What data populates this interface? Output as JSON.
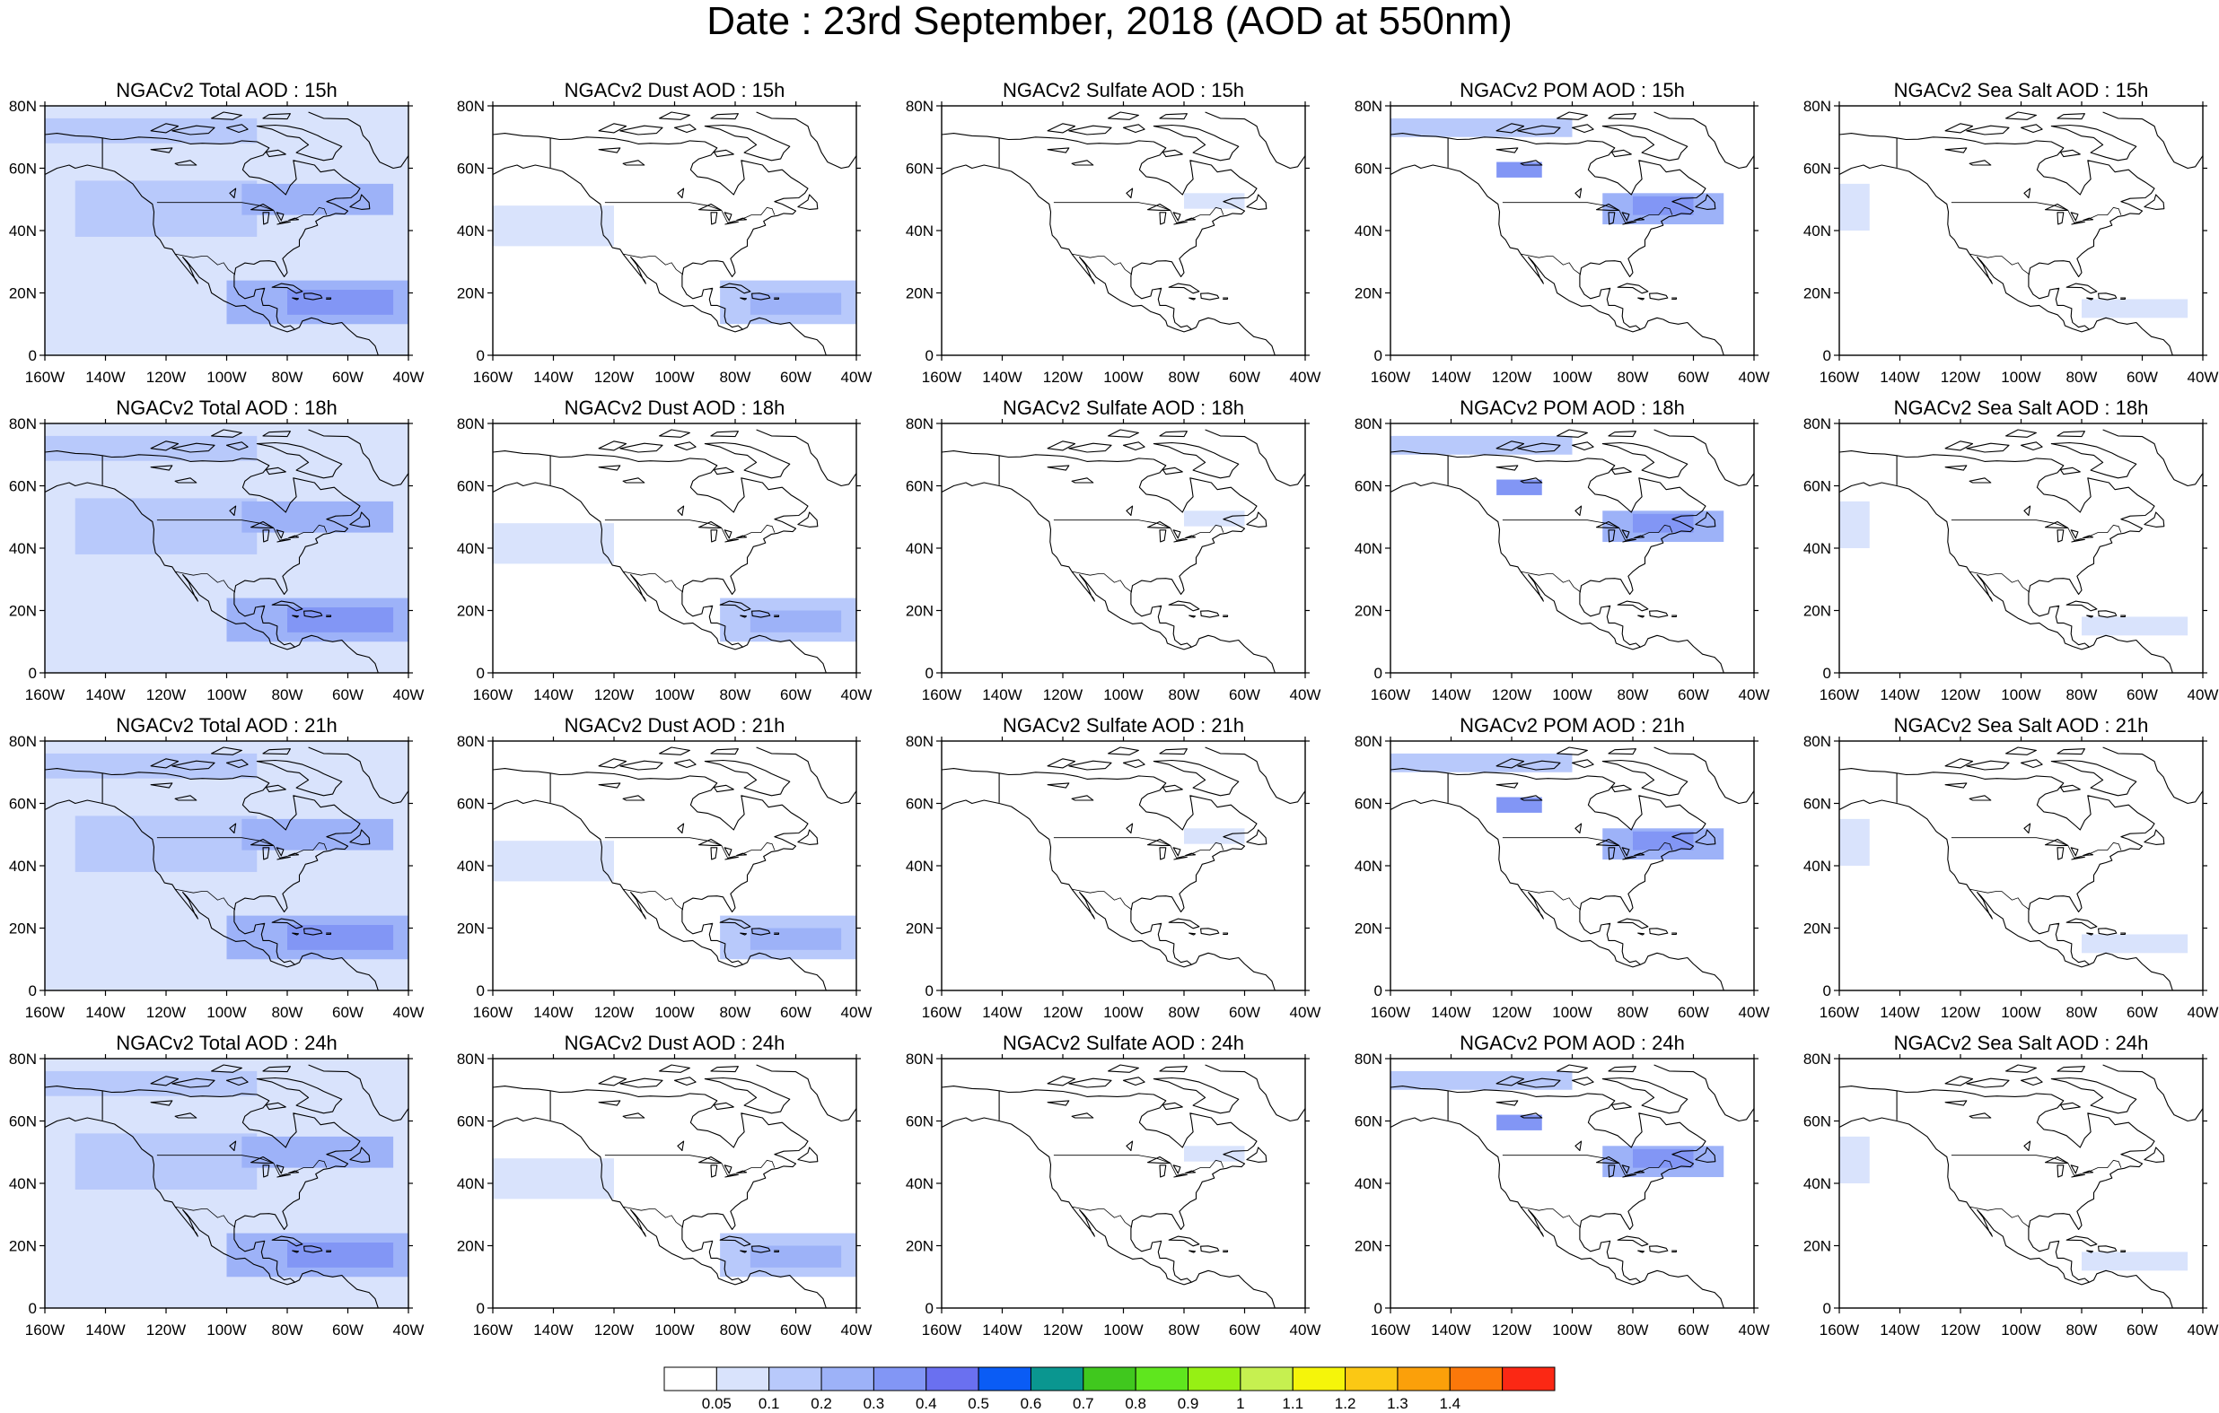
{
  "title": "Date : 23rd September, 2018 (AOD at 550nm)",
  "latitude_labels": [
    "80N",
    "60N",
    "40N",
    "20N",
    "0"
  ],
  "longitude_labels": [
    "160W",
    "140W",
    "120W",
    "100W",
    "80W",
    "60W",
    "40W"
  ],
  "panels": [
    {
      "title": "NGACv2 Total AOD : 15h",
      "species": "total",
      "hour": "15h"
    },
    {
      "title": "NGACv2 Dust AOD : 15h",
      "species": "dust",
      "hour": "15h"
    },
    {
      "title": "NGACv2 Sulfate AOD : 15h",
      "species": "sulfate",
      "hour": "15h"
    },
    {
      "title": "NGACv2 POM AOD : 15h",
      "species": "pom",
      "hour": "15h"
    },
    {
      "title": "NGACv2 Sea Salt AOD : 15h",
      "species": "seasalt",
      "hour": "15h"
    },
    {
      "title": "NGACv2 Total AOD : 18h",
      "species": "total",
      "hour": "18h"
    },
    {
      "title": "NGACv2 Dust AOD : 18h",
      "species": "dust",
      "hour": "18h"
    },
    {
      "title": "NGACv2 Sulfate AOD : 18h",
      "species": "sulfate",
      "hour": "18h"
    },
    {
      "title": "NGACv2 POM AOD : 18h",
      "species": "pom",
      "hour": "18h"
    },
    {
      "title": "NGACv2 Sea Salt AOD : 18h",
      "species": "seasalt",
      "hour": "18h"
    },
    {
      "title": "NGACv2 Total AOD : 21h",
      "species": "total",
      "hour": "21h"
    },
    {
      "title": "NGACv2 Dust AOD : 21h",
      "species": "dust",
      "hour": "21h"
    },
    {
      "title": "NGACv2 Sulfate AOD : 21h",
      "species": "sulfate",
      "hour": "21h"
    },
    {
      "title": "NGACv2 POM AOD : 21h",
      "species": "pom",
      "hour": "21h"
    },
    {
      "title": "NGACv2 Sea Salt AOD : 21h",
      "species": "seasalt",
      "hour": "21h"
    },
    {
      "title": "NGACv2 Total AOD : 24h",
      "species": "total",
      "hour": "24h"
    },
    {
      "title": "NGACv2 Dust AOD : 24h",
      "species": "dust",
      "hour": "24h"
    },
    {
      "title": "NGACv2 Sulfate AOD : 24h",
      "species": "sulfate",
      "hour": "24h"
    },
    {
      "title": "NGACv2 POM AOD : 24h",
      "species": "pom",
      "hour": "24h"
    },
    {
      "title": "NGACv2 Sea Salt  AOD : 24h",
      "species": "seasalt",
      "hour": "24h"
    }
  ],
  "colorbar": {
    "boundaries": [
      "0.05",
      "0.1",
      "0.2",
      "0.3",
      "0.4",
      "0.5",
      "0.6",
      "0.7",
      "0.8",
      "0.9",
      "1",
      "1.1",
      "1.2",
      "1.3",
      "1.4"
    ],
    "colors": [
      "#ffffff",
      "#d9e3fc",
      "#b8c9fb",
      "#9db2f8",
      "#8296f5",
      "#6a70f0",
      "#0a5cf5",
      "#0a9690",
      "#40c81e",
      "#5fe61e",
      "#96f014",
      "#c6f050",
      "#f5f50a",
      "#fbc814",
      "#fba00a",
      "#fb780a",
      "#fb2814"
    ]
  },
  "chart_data": {
    "type": "heatmap",
    "title": "Date : 23rd September, 2018 (AOD at 550nm)",
    "map_extent": {
      "lon": [
        -160,
        -40
      ],
      "lat": [
        0,
        80
      ]
    },
    "rows": [
      "15h",
      "18h",
      "21h",
      "24h"
    ],
    "columns": [
      "NGACv2 Total AOD",
      "NGACv2 Dust AOD",
      "NGACv2 Sulfate AOD",
      "NGACv2 POM AOD",
      "NGACv2 Sea Salt AOD"
    ],
    "color_levels": [
      0.05,
      0.1,
      0.2,
      0.3,
      0.4,
      0.5,
      0.6,
      0.7,
      0.8,
      0.9,
      1,
      1.1,
      1.2,
      1.3,
      1.4
    ],
    "aod_regions": {
      "total": [
        {
          "lon": [
            -160,
            -40
          ],
          "lat": [
            0,
            80
          ],
          "aod": 0.07
        },
        {
          "lon": [
            -150,
            -90
          ],
          "lat": [
            38,
            56
          ],
          "aod": 0.12
        },
        {
          "lon": [
            -160,
            -90
          ],
          "lat": [
            68,
            76
          ],
          "aod": 0.15
        },
        {
          "lon": [
            -95,
            -45
          ],
          "lat": [
            45,
            55
          ],
          "aod": 0.25
        },
        {
          "lon": [
            -100,
            -40
          ],
          "lat": [
            10,
            24
          ],
          "aod": 0.2
        },
        {
          "lon": [
            -80,
            -45
          ],
          "lat": [
            13,
            21
          ],
          "aod": 0.3
        }
      ],
      "dust": [
        {
          "lon": [
            -160,
            -120
          ],
          "lat": [
            35,
            48
          ],
          "aod": 0.07
        },
        {
          "lon": [
            -85,
            -40
          ],
          "lat": [
            10,
            24
          ],
          "aod": 0.15
        },
        {
          "lon": [
            -75,
            -45
          ],
          "lat": [
            13,
            20
          ],
          "aod": 0.25
        }
      ],
      "sulfate": [
        {
          "lon": [
            -80,
            -60
          ],
          "lat": [
            47,
            52
          ],
          "aod": 0.07
        }
      ],
      "pom": [
        {
          "lon": [
            -160,
            -100
          ],
          "lat": [
            70,
            76
          ],
          "aod": 0.1
        },
        {
          "lon": [
            -125,
            -110
          ],
          "lat": [
            57,
            62
          ],
          "aod": 0.3
        },
        {
          "lon": [
            -90,
            -50
          ],
          "lat": [
            42,
            52
          ],
          "aod": 0.2
        },
        {
          "lon": [
            -80,
            -60
          ],
          "lat": [
            45,
            51
          ],
          "aod": 0.3
        }
      ],
      "seasalt": [
        {
          "lon": [
            -160,
            -150
          ],
          "lat": [
            40,
            55
          ],
          "aod": 0.07
        },
        {
          "lon": [
            -80,
            -45
          ],
          "lat": [
            12,
            18
          ],
          "aod": 0.07
        }
      ]
    }
  }
}
